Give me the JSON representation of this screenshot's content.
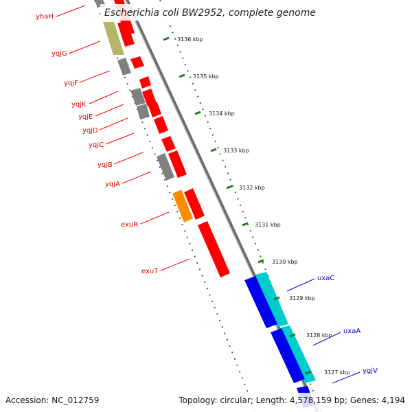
{
  "title": "Escherichia coli BW2952, complete genome",
  "footer": {
    "accession": "Accession: NC_012759",
    "summary": "Topology: circular; Length: 4,578,159 bp; Genes: 4,194"
  },
  "scale_ticks": [
    "3136 kbp",
    "3135 kbp",
    "3134 kbp",
    "3133 kbp",
    "3132 kbp",
    "3131 kbp",
    "3130 kbp",
    "3129 kbp",
    "3128 kbp",
    "3127 kbp"
  ],
  "gene_labels": [
    "yhaH",
    "yqjG",
    "yqjF",
    "yqjK",
    "yqjE",
    "yqjD",
    "yqjC",
    "yqjB",
    "yqjA",
    "exuR",
    "exuT",
    "uxaC",
    "uxaA",
    "ygjV"
  ],
  "colors": {
    "reverse_strand_gene": "#ff0000",
    "forward_strand_gene": "#0000ee",
    "rna_gene": "#00cccc",
    "regulator_gene": "#ff8c00",
    "pseudo_gene": "#808080",
    "other_gene": "#b5b56a",
    "scale_ticks": "#1a7a1a"
  }
}
